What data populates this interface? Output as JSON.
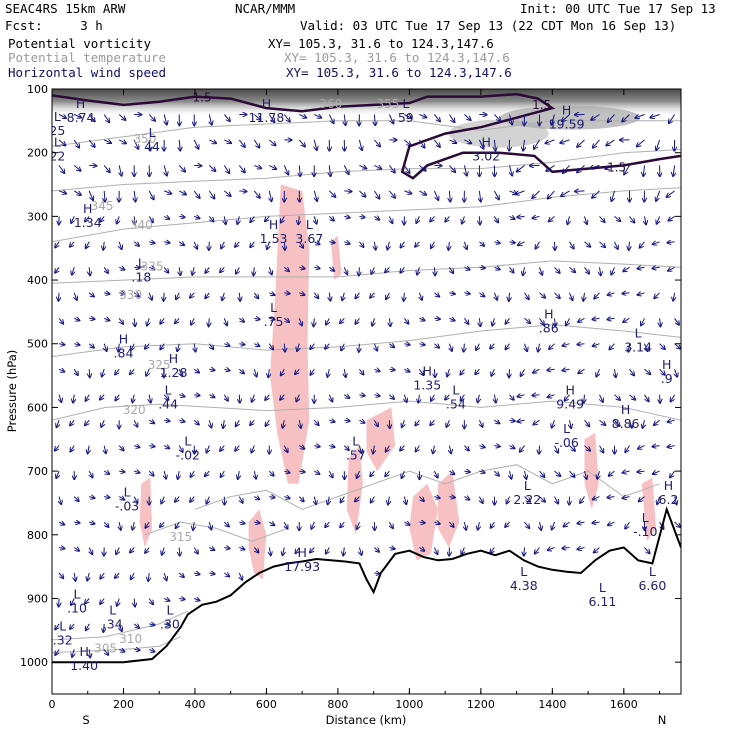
{
  "header": {
    "model": "SEAC4RS 15km ARW",
    "forecast": "Fcst:     3 h",
    "center": "NCAR/MMM",
    "init": "Init: 00 UTC Tue 17 Sep 13",
    "valid": "Valid: 03 UTC Tue 17 Sep 13 (22 CDT Mon 16 Sep 13)",
    "fields": [
      {
        "name": "Potential vorticity",
        "xy": "XY= 105.3, 31.6 to 124.3,147.6",
        "color": "#000000"
      },
      {
        "name": "Potential temperature",
        "xy": "XY= 105.3, 31.6 to 124.3,147.6",
        "color": "#9a9a9a"
      },
      {
        "name": "Horizontal wind speed",
        "xy": "XY= 105.3, 31.6 to 124.3,147.6",
        "color": "#10106a"
      }
    ]
  },
  "colors": {
    "pv_contour": "#2a0b38",
    "theta_contour": "#b0b0b0",
    "wind_vector": "#151580",
    "pink_fill": "#f6b6b8",
    "terrain": "#000000"
  },
  "chart_data": {
    "type": "cross-section",
    "xlabel": "Distance (km)",
    "ylabel": "Pressure (hPa)",
    "xlim": [
      0,
      1760
    ],
    "ylim": [
      1050,
      100
    ],
    "x_ticks": [
      "0",
      "200",
      "400",
      "600",
      "800",
      "1000",
      "1200",
      "1400",
      "1600"
    ],
    "x_tick_values": [
      0,
      200,
      400,
      600,
      800,
      1000,
      1200,
      1400,
      1600
    ],
    "y_ticks": [
      "100",
      "200",
      "300",
      "400",
      "500",
      "600",
      "700",
      "800",
      "900",
      "1000"
    ],
    "y_tick_values": [
      100,
      200,
      300,
      400,
      500,
      600,
      700,
      800,
      900,
      1000
    ],
    "x_end_labels": {
      "left": "S",
      "right": "N"
    },
    "grid": false,
    "terrain": {
      "x": [
        0,
        100,
        200,
        280,
        320,
        360,
        380,
        420,
        460,
        500,
        540,
        580,
        620,
        660,
        700,
        740,
        780,
        820,
        860,
        880,
        900,
        920,
        960,
        1000,
        1040,
        1080,
        1120,
        1160,
        1200,
        1240,
        1280,
        1320,
        1360,
        1400,
        1440,
        1480,
        1520,
        1560,
        1600,
        1640,
        1680,
        1720,
        1760
      ],
      "p": [
        1000,
        1000,
        1000,
        995,
        975,
        945,
        925,
        910,
        905,
        895,
        875,
        860,
        850,
        845,
        842,
        838,
        840,
        842,
        845,
        870,
        890,
        860,
        830,
        825,
        835,
        840,
        838,
        830,
        825,
        832,
        825,
        840,
        850,
        855,
        858,
        860,
        840,
        825,
        820,
        840,
        845,
        760,
        820
      ]
    },
    "pv_contour_label": "1.5",
    "theta_labels": [
      "305",
      "310",
      "315",
      "320",
      "325",
      "330",
      "335",
      "340",
      "345",
      "350",
      "355",
      "360"
    ],
    "extrema": [
      {
        "type": "H",
        "value": "8.74",
        "x": 80,
        "p": 130
      },
      {
        "type": "L",
        "value": "25",
        "x": 15,
        "p": 150
      },
      {
        "type": "L",
        "value": "22",
        "x": 15,
        "p": 190
      },
      {
        "type": "L",
        "value": "44",
        "x": 280,
        "p": 175
      },
      {
        "type": "H",
        "value": "11.78",
        "x": 600,
        "p": 130
      },
      {
        "type": "L",
        "value": "59",
        "x": 990,
        "p": 130
      },
      {
        "type": "H",
        "value": "19.59",
        "x": 1440,
        "p": 140
      },
      {
        "type": "H",
        "value": "3.02",
        "x": 1215,
        "p": 190
      },
      {
        "type": "H",
        "value": "1.34",
        "x": 100,
        "p": 295
      },
      {
        "type": "H",
        "value": "1.53",
        "x": 620,
        "p": 320
      },
      {
        "type": "L",
        "value": "3.67",
        "x": 720,
        "p": 320
      },
      {
        "type": "L",
        "value": ".18",
        "x": 250,
        "p": 380
      },
      {
        "type": "L",
        "value": ".75",
        "x": 620,
        "p": 450
      },
      {
        "type": "H",
        "value": ".84",
        "x": 200,
        "p": 500
      },
      {
        "type": "H",
        "value": "1.28",
        "x": 340,
        "p": 530
      },
      {
        "type": "L",
        "value": ".44",
        "x": 325,
        "p": 580
      },
      {
        "type": "L",
        "value": "-.02",
        "x": 380,
        "p": 660
      },
      {
        "type": "H",
        "value": "1.35",
        "x": 1050,
        "p": 550
      },
      {
        "type": "L",
        "value": ".54",
        "x": 1130,
        "p": 580
      },
      {
        "type": "H",
        "value": ".86",
        "x": 1390,
        "p": 460
      },
      {
        "type": "L",
        "value": "3.14",
        "x": 1640,
        "p": 490
      },
      {
        "type": "H",
        "value": ".9",
        "x": 1720,
        "p": 540
      },
      {
        "type": "H",
        "value": "9.49",
        "x": 1450,
        "p": 580
      },
      {
        "type": "H",
        "value": "8.86",
        "x": 1605,
        "p": 610
      },
      {
        "type": "L",
        "value": "-.06",
        "x": 1440,
        "p": 640
      },
      {
        "type": "L",
        "value": ".57",
        "x": 850,
        "p": 660
      },
      {
        "type": "L",
        "value": "-.03",
        "x": 210,
        "p": 740
      },
      {
        "type": "L",
        "value": "2.22",
        "x": 1330,
        "p": 730
      },
      {
        "type": "L",
        "value": "-.10",
        "x": 1660,
        "p": 780
      },
      {
        "type": "H",
        "value": "6.2",
        "x": 1725,
        "p": 730
      },
      {
        "type": "H",
        "value": "17.93",
        "x": 700,
        "p": 835
      },
      {
        "type": "L",
        "value": "4.38",
        "x": 1320,
        "p": 865
      },
      {
        "type": "L",
        "value": "6.11",
        "x": 1540,
        "p": 890
      },
      {
        "type": "L",
        "value": "6.60",
        "x": 1680,
        "p": 865
      },
      {
        "type": "L",
        "value": ".10",
        "x": 70,
        "p": 900
      },
      {
        "type": "L",
        "value": ".34",
        "x": 170,
        "p": 925
      },
      {
        "type": "L",
        "value": ".30",
        "x": 330,
        "p": 925
      },
      {
        "type": "L",
        "value": ".32",
        "x": 30,
        "p": 950
      },
      {
        "type": "H",
        "value": "1.40",
        "x": 90,
        "p": 990
      }
    ]
  }
}
